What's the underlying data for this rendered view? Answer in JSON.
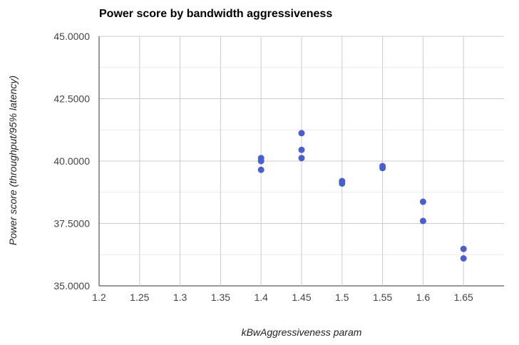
{
  "chart_data": {
    "type": "scatter",
    "title": "Power score by bandwidth aggressiveness",
    "xlabel": "kBwAggressiveness param",
    "ylabel": "Power score (throughput/95% latency)",
    "xlim": [
      1.2,
      1.7
    ],
    "ylim": [
      35,
      45
    ],
    "x_ticks": [
      "1.2",
      "1.25",
      "1.3",
      "1.35",
      "1.4",
      "1.45",
      "1.5",
      "1.55",
      "1.6",
      "1.65"
    ],
    "x_tick_values": [
      1.2,
      1.25,
      1.3,
      1.35,
      1.4,
      1.45,
      1.5,
      1.55,
      1.6,
      1.65
    ],
    "y_ticks": [
      "35.0000",
      "37.5000",
      "40.0000",
      "42.5000",
      "45.0000"
    ],
    "y_tick_values": [
      35,
      37.5,
      40,
      42.5,
      45
    ],
    "grid": true,
    "series": [
      {
        "color": "#4a5fce",
        "points": [
          {
            "x": 1.4,
            "y": 40.12
          },
          {
            "x": 1.4,
            "y": 40.0
          },
          {
            "x": 1.4,
            "y": 39.65
          },
          {
            "x": 1.45,
            "y": 41.12
          },
          {
            "x": 1.45,
            "y": 40.45
          },
          {
            "x": 1.45,
            "y": 40.12
          },
          {
            "x": 1.5,
            "y": 39.2
          },
          {
            "x": 1.5,
            "y": 39.1
          },
          {
            "x": 1.55,
            "y": 39.8
          },
          {
            "x": 1.55,
            "y": 39.72
          },
          {
            "x": 1.6,
            "y": 38.37
          },
          {
            "x": 1.6,
            "y": 37.6
          },
          {
            "x": 1.65,
            "y": 36.48
          },
          {
            "x": 1.65,
            "y": 36.1
          }
        ]
      }
    ]
  }
}
